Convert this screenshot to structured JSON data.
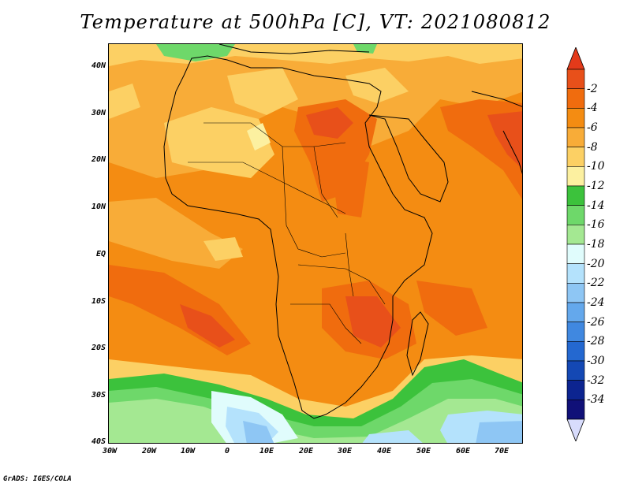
{
  "title": "Temperature at 500hPa [C], VT: 2021080812",
  "footer": "GrADS: IGES/COLA",
  "map": {
    "region": "Africa",
    "projection": "lat-lon",
    "lon_range": [
      -30,
      75
    ],
    "lat_range": [
      -40,
      45
    ],
    "x_tick_labels": [
      "30W",
      "20W",
      "10W",
      "0",
      "10E",
      "20E",
      "30E",
      "40E",
      "50E",
      "60E",
      "70E"
    ],
    "y_tick_labels": [
      "40N",
      "30N",
      "20N",
      "10N",
      "EQ",
      "10S",
      "20S",
      "30S",
      "40S"
    ]
  },
  "colorbar": {
    "labels": [
      "-2",
      "-4",
      "-6",
      "-8",
      "-10",
      "-12",
      "-14",
      "-16",
      "-18",
      "-20",
      "-22",
      "-24",
      "-26",
      "-28",
      "-30",
      "-32",
      "-34"
    ],
    "colors": [
      "#e8501a",
      "#f06c0e",
      "#f48c12",
      "#f8ac38",
      "#fcd064",
      "#fcf0a0",
      "#3cc23c",
      "#6ed86a",
      "#a4e892",
      "#e0fcfc",
      "#b4e2fc",
      "#8ec6f4",
      "#64a8ec",
      "#4088e0",
      "#2468d0",
      "#1448b4",
      "#0c2490",
      "#101078"
    ],
    "top_triangle_color": "#e33a1a",
    "bottom_triangle_color": "#d8dcfc"
  }
}
